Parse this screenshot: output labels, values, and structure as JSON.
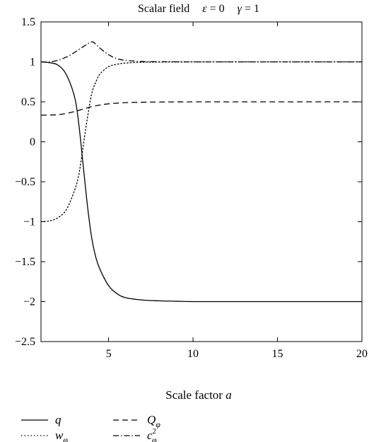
{
  "chart_data": {
    "type": "line",
    "title": {
      "prefix": "Scalar field",
      "eps_symbol": "ε",
      "eps_value": " = 0",
      "gamma_symbol": "γ",
      "gamma_value": " = 1"
    },
    "xlabel": {
      "text": "Scale factor ",
      "var": "a"
    },
    "ylabel": "",
    "xlim": [
      1,
      20
    ],
    "ylim": [
      -2.5,
      1.5
    ],
    "xticks": [
      5,
      10,
      15,
      20
    ],
    "xtick_labels": [
      "5",
      "10",
      "15",
      "20"
    ],
    "yticks": [
      1.5,
      1,
      0.5,
      0,
      -0.5,
      -1,
      -1.5,
      -2,
      -2.5
    ],
    "ytick_labels": [
      "1.5",
      "1",
      "0.5",
      "0",
      "−0.5",
      "−1",
      "−1.5",
      "−2",
      "−2.5"
    ],
    "grid": false,
    "legend_position": "bottom, below plot",
    "series": [
      {
        "name": "q",
        "style": "solid",
        "x": [
          1,
          1.5,
          2,
          2.5,
          3,
          3.25,
          3.5,
          3.75,
          4,
          4.25,
          4.5,
          5,
          5.5,
          6,
          7,
          8,
          9,
          10,
          12,
          15,
          20
        ],
        "y": [
          1,
          0.99,
          0.96,
          0.84,
          0.55,
          0.2,
          -0.3,
          -0.8,
          -1.2,
          -1.45,
          -1.6,
          -1.8,
          -1.9,
          -1.95,
          -1.98,
          -1.99,
          -1.995,
          -2,
          -2,
          -2,
          -2
        ]
      },
      {
        "name": "Q",
        "sub": "φ",
        "style": "dashed",
        "x": [
          1,
          1.5,
          2,
          2.5,
          3,
          3.5,
          4,
          4.5,
          5,
          6,
          7,
          8,
          10,
          12,
          15,
          20
        ],
        "y": [
          0.333,
          0.335,
          0.34,
          0.355,
          0.38,
          0.41,
          0.44,
          0.46,
          0.475,
          0.49,
          0.495,
          0.498,
          0.5,
          0.5,
          0.5,
          0.5
        ]
      },
      {
        "name": "w",
        "sub": "φ",
        "style": "dotted",
        "x": [
          1,
          1.5,
          2,
          2.5,
          3,
          3.25,
          3.5,
          3.75,
          4,
          4.25,
          4.5,
          5,
          5.5,
          6,
          7,
          8,
          10,
          12,
          15,
          20
        ],
        "y": [
          -1,
          -0.99,
          -0.95,
          -0.85,
          -0.6,
          -0.4,
          -0.05,
          0.3,
          0.6,
          0.75,
          0.85,
          0.94,
          0.97,
          0.985,
          0.995,
          0.998,
          1,
          1,
          1,
          1
        ]
      },
      {
        "name": "c",
        "sub": "φ",
        "sup": "2",
        "style": "dash-dot",
        "x": [
          1,
          1.5,
          2,
          2.5,
          3,
          3.5,
          4,
          4.25,
          4.5,
          5,
          5.5,
          6,
          7,
          8,
          10,
          12,
          15,
          20
        ],
        "y": [
          1,
          1,
          1.02,
          1.06,
          1.12,
          1.19,
          1.25,
          1.22,
          1.17,
          1.09,
          1.04,
          1.02,
          1.005,
          1.002,
          1,
          1,
          1,
          1
        ]
      }
    ]
  }
}
